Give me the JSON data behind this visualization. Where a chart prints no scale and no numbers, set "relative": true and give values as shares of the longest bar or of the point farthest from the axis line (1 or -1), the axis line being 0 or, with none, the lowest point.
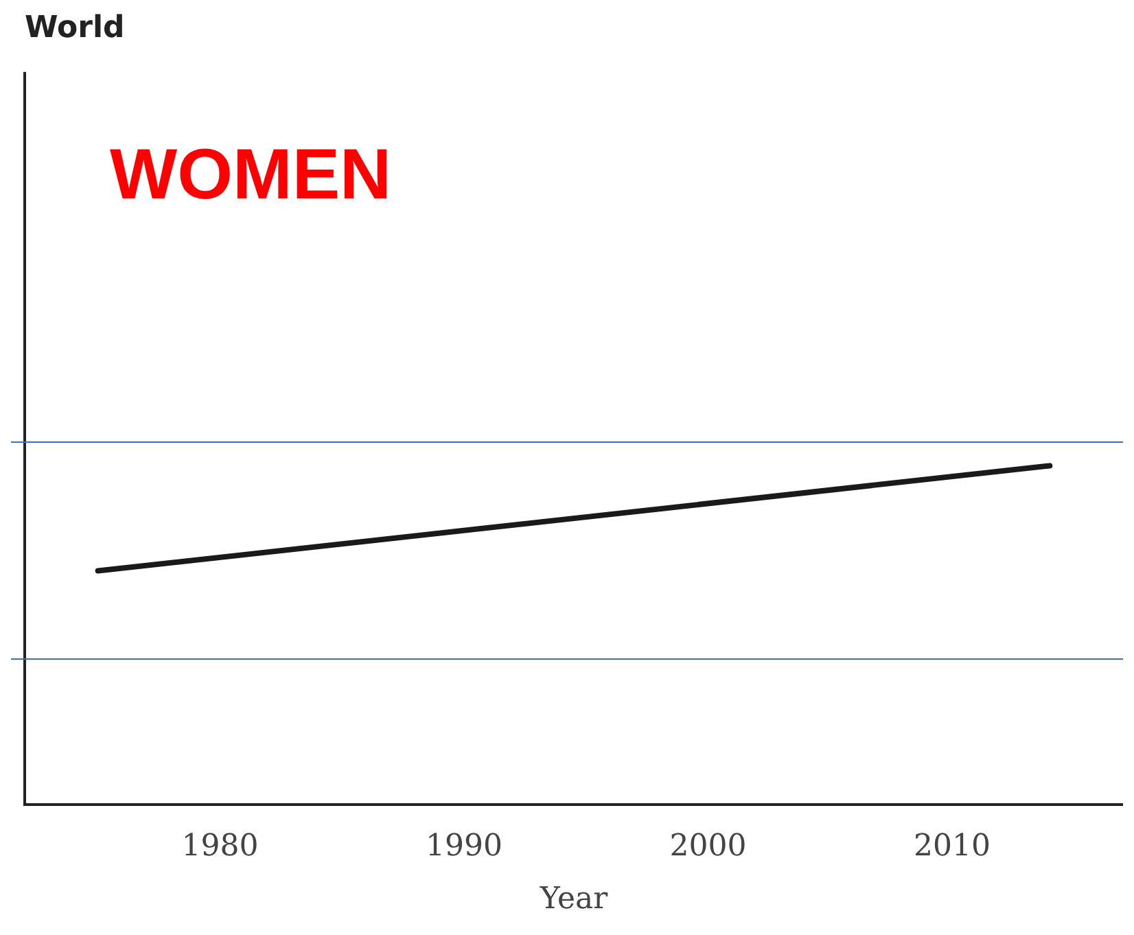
{
  "chart_data": {
    "type": "line",
    "title": "World",
    "xlabel": "Year",
    "annotations": [
      "WOMEN"
    ],
    "relative": true,
    "x": [
      1975,
      2014
    ],
    "series": [
      {
        "color": "#1a1a1a",
        "values": [
          0.69,
          1
        ]
      }
    ],
    "xlim": [
      1972,
      2017
    ],
    "xticks": [
      1980,
      1990,
      2000,
      2010
    ],
    "ref_lines": [
      {
        "axis": "y",
        "value": 1.07,
        "color": "#3a6fc4"
      },
      {
        "axis": "y",
        "value": 0.43,
        "color": "#3a6fc4"
      }
    ],
    "grid": false,
    "legend": false,
    "marker": "none",
    "line_style": "solid"
  }
}
